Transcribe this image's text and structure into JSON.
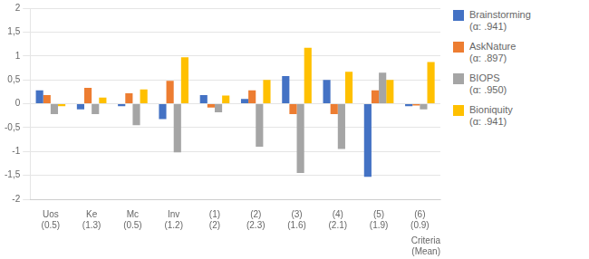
{
  "chart_data": {
    "type": "bar",
    "categories": [
      "Uos\n(0.5)",
      "Ke\n(1.3)",
      "Mc\n(0.5)",
      "Inv\n(1.2)",
      "(1)\n(2)",
      "(2)\n(2.3)",
      "(3)\n(1.6)",
      "(4)\n(2.1)",
      "(5)\n(1.9)",
      "(6)\n(0.9)"
    ],
    "series": [
      {
        "name": "Brainstorming\n(α: .941)",
        "color": "#4472C4",
        "values": [
          0.28,
          -0.12,
          -0.05,
          -0.32,
          0.18,
          0.1,
          0.58,
          0.5,
          -1.53,
          -0.05
        ]
      },
      {
        "name": "AskNature\n(α: .897)",
        "color": "#ED7D31",
        "values": [
          0.18,
          0.33,
          0.22,
          0.48,
          -0.08,
          0.28,
          -0.22,
          -0.22,
          0.28,
          -0.04
        ]
      },
      {
        "name": "BIOPS\n(α: .950)",
        "color": "#A5A5A5",
        "values": [
          -0.22,
          -0.22,
          -0.45,
          -1.02,
          -0.18,
          -0.9,
          -1.45,
          -0.95,
          0.65,
          -0.12
        ]
      },
      {
        "name": "Bioniquity\n(α: .941)",
        "color": "#FFC000",
        "values": [
          -0.05,
          0.13,
          0.3,
          0.97,
          0.17,
          0.5,
          1.17,
          0.67,
          0.5,
          0.87
        ]
      }
    ],
    "xlabel": "Criteria\n(Mean)",
    "ylim": [
      -2,
      2
    ],
    "yticks": [
      -2,
      {
        "value": -1.5,
        "label": "-1,5"
      },
      -1,
      {
        "value": -0.5,
        "label": "-0,5"
      },
      0,
      {
        "value": 0.5,
        "label": "0,5"
      },
      1,
      {
        "value": 1.5,
        "label": "1,5"
      },
      2
    ],
    "grid": true,
    "legend": "right"
  }
}
